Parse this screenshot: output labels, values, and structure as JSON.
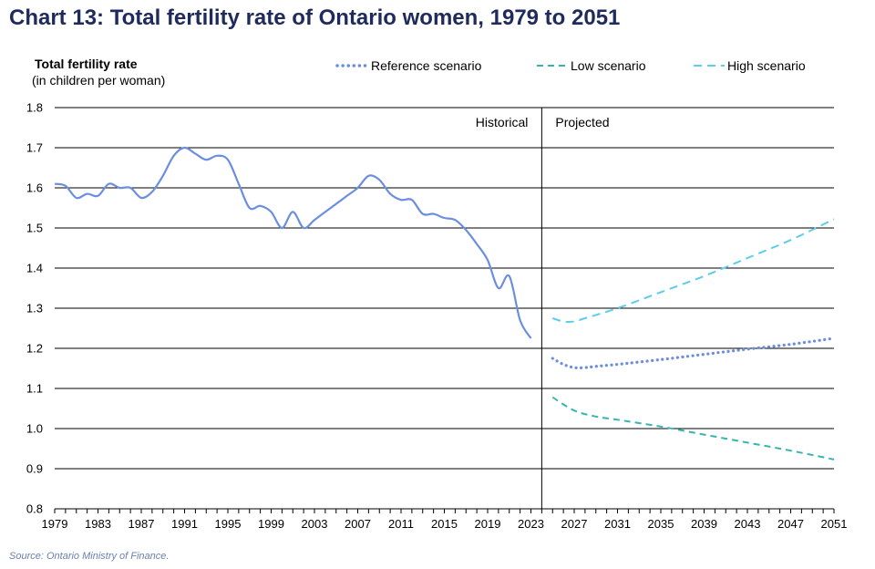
{
  "chart_data": {
    "type": "line",
    "title": "Chart 13: Total fertility rate of Ontario women, 1979 to 2051",
    "ylabel": "Total fertility  rate",
    "ylabel_sub": "(in children  per woman)",
    "ylim": [
      0.8,
      1.8
    ],
    "yticks": [
      "0.8",
      "0.9",
      "1.0",
      "1.1",
      "1.2",
      "1.3",
      "1.4",
      "1.5",
      "1.6",
      "1.7",
      "1.8"
    ],
    "xlim": [
      1979,
      2051
    ],
    "xticks": [
      "1979",
      "1983",
      "1987",
      "1991",
      "1995",
      "1999",
      "2003",
      "2007",
      "2011",
      "2015",
      "2019",
      "2023",
      "2027",
      "2031",
      "2035",
      "2039",
      "2043",
      "2047",
      "2051"
    ],
    "divider_year": 2024,
    "region_labels": {
      "historical": "Historical",
      "projected": "Projected"
    },
    "series": [
      {
        "name": "Historical",
        "style": "solid",
        "color": "#6c8ee0",
        "x": [
          1979,
          1980,
          1981,
          1982,
          1983,
          1984,
          1985,
          1986,
          1987,
          1988,
          1989,
          1990,
          1991,
          1992,
          1993,
          1994,
          1995,
          1996,
          1997,
          1998,
          1999,
          2000,
          2001,
          2002,
          2003,
          2004,
          2005,
          2006,
          2007,
          2008,
          2009,
          2010,
          2011,
          2012,
          2013,
          2014,
          2015,
          2016,
          2017,
          2018,
          2019,
          2020,
          2021,
          2022,
          2023
        ],
        "values": [
          1.61,
          1.605,
          1.575,
          1.585,
          1.58,
          1.61,
          1.6,
          1.6,
          1.575,
          1.59,
          1.63,
          1.68,
          1.7,
          1.685,
          1.67,
          1.68,
          1.67,
          1.61,
          1.55,
          1.555,
          1.54,
          1.5,
          1.54,
          1.5,
          1.52,
          1.54,
          1.56,
          1.58,
          1.6,
          1.63,
          1.62,
          1.585,
          1.57,
          1.57,
          1.535,
          1.535,
          1.525,
          1.52,
          1.495,
          1.46,
          1.42,
          1.35,
          1.38,
          1.27,
          1.225
        ]
      },
      {
        "name": "Reference scenario",
        "style": "dotted",
        "color": "#6c8ee0",
        "x": [
          2025,
          2026,
          2027,
          2028,
          2029,
          2031,
          2035,
          2039,
          2043,
          2047,
          2051
        ],
        "values": [
          1.175,
          1.16,
          1.152,
          1.152,
          1.155,
          1.16,
          1.172,
          1.185,
          1.198,
          1.21,
          1.225
        ]
      },
      {
        "name": "Low scenario",
        "style": "dashed",
        "color": "#36b5b0",
        "x": [
          2025,
          2027,
          2029,
          2031,
          2035,
          2039,
          2043,
          2047,
          2051
        ],
        "values": [
          1.078,
          1.045,
          1.03,
          1.022,
          1.005,
          0.985,
          0.965,
          0.945,
          0.923
        ]
      },
      {
        "name": "High scenario",
        "style": "dashed",
        "color": "#5ccdea",
        "x": [
          2025,
          2026,
          2027,
          2028,
          2031,
          2035,
          2039,
          2043,
          2047,
          2051
        ],
        "values": [
          1.275,
          1.267,
          1.267,
          1.275,
          1.3,
          1.34,
          1.38,
          1.425,
          1.47,
          1.522
        ]
      }
    ]
  },
  "legend": {
    "reference": "Reference scenario",
    "low": "Low scenario",
    "high": "High scenario"
  },
  "source": "Source: Ontario Ministry of Finance."
}
